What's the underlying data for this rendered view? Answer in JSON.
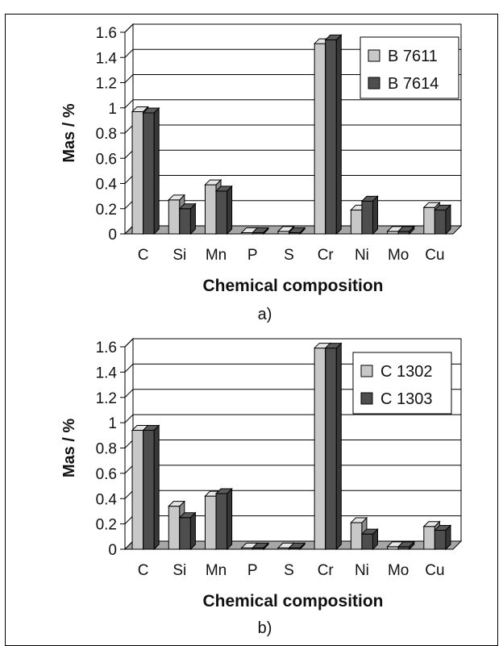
{
  "colors": {
    "series_light": "#c8c8c8",
    "series_dark": "#4e4e4e",
    "floor": "#a6a6a6",
    "grid": "#000000"
  },
  "chart_data": [
    {
      "type": "bar",
      "style": "3d-clustered",
      "panel_label": "a)",
      "title": "",
      "xlabel": "Chemical composition",
      "ylabel": "Mas / %",
      "ylim": [
        0,
        1.6
      ],
      "yticks": [
        "0",
        "0.2",
        "0.4",
        "0.6",
        "0.8",
        "1",
        "1.2",
        "1.4",
        "1.6"
      ],
      "grid": true,
      "legend_position": "top-right",
      "categories": [
        "C",
        "Si",
        "Mn",
        "P",
        "S",
        "Cr",
        "Ni",
        "Mo",
        "Cu"
      ],
      "series": [
        {
          "name": "B 7611",
          "color": "light",
          "values": [
            0.97,
            0.27,
            0.39,
            0.01,
            0.02,
            1.51,
            0.19,
            0.02,
            0.21
          ]
        },
        {
          "name": "B 7614",
          "color": "dark",
          "values": [
            0.96,
            0.2,
            0.34,
            0.01,
            0.01,
            1.54,
            0.26,
            0.02,
            0.19
          ]
        }
      ]
    },
    {
      "type": "bar",
      "style": "3d-clustered",
      "panel_label": "b)",
      "title": "",
      "xlabel": "Chemical composition",
      "ylabel": "Mas / %",
      "ylim": [
        0,
        1.6
      ],
      "yticks": [
        "0",
        "0.2",
        "0.4",
        "0.6",
        "0.8",
        "1",
        "1.2",
        "1.4",
        "1.6"
      ],
      "grid": true,
      "legend_position": "top-right",
      "categories": [
        "C",
        "Si",
        "Mn",
        "P",
        "S",
        "Cr",
        "Ni",
        "Mo",
        "Cu"
      ],
      "series": [
        {
          "name": "C 1302",
          "color": "light",
          "values": [
            0.94,
            0.34,
            0.42,
            0.01,
            0.01,
            1.59,
            0.21,
            0.02,
            0.18
          ]
        },
        {
          "name": "C 1303",
          "color": "dark",
          "values": [
            0.94,
            0.25,
            0.44,
            0.01,
            0.01,
            1.59,
            0.12,
            0.02,
            0.15
          ]
        }
      ]
    }
  ]
}
